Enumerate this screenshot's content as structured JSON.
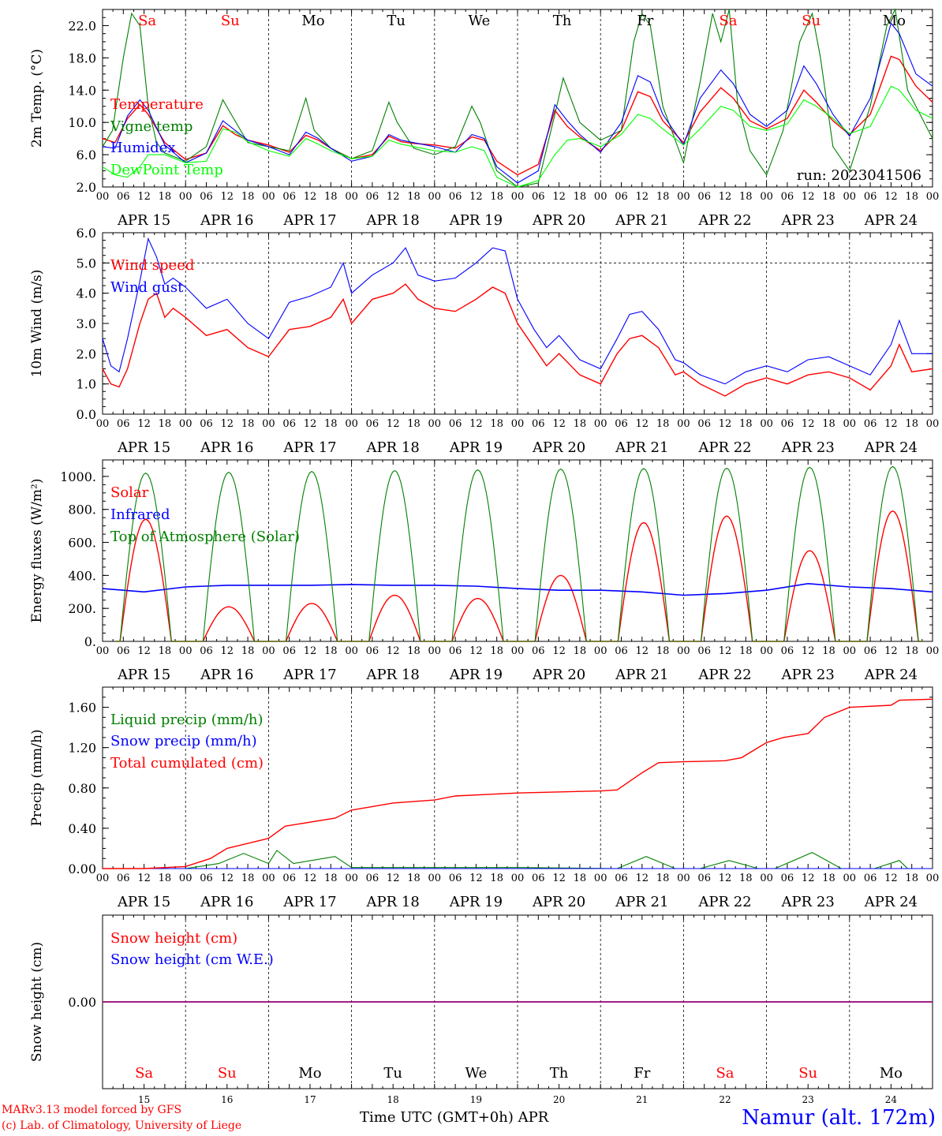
{
  "footer": {
    "model_line": "MARv3.13 model forced by GFS",
    "credit_line": "(c) Lab. of Climatology, University of Liege",
    "time_axis": "Time UTC (GMT+0h) APR",
    "station": "Namur (alt. 172m)"
  },
  "colors": {
    "red": "#ff0000",
    "green": "#008000",
    "blue": "#0000ff",
    "lime": "#00ff00",
    "purple": "#800080"
  },
  "x_axis": {
    "hour_ticks": [
      "00",
      "06",
      "12",
      "18"
    ],
    "day_labels": [
      "APR 15",
      "APR 16",
      "APR 17",
      "APR 18",
      "APR 19",
      "APR 20",
      "APR 21",
      "APR 22",
      "APR 23",
      "APR 24"
    ],
    "weekdays": [
      "Sa",
      "Su",
      "Mo",
      "Tu",
      "We",
      "Th",
      "Fr",
      "Sa",
      "Su",
      "Mo"
    ],
    "weekday_colors": [
      "red",
      "red",
      "black",
      "black",
      "black",
      "black",
      "black",
      "red",
      "red",
      "black"
    ],
    "day_numbers": [
      "15",
      "16",
      "17",
      "18",
      "19",
      "20",
      "21",
      "22",
      "23",
      "24"
    ]
  },
  "chart_data": [
    {
      "type": "line",
      "ylabel": "2m Temp. (°C)",
      "ylim": [
        2,
        24
      ],
      "yticks": [
        "2.0",
        "6.0",
        "10.0",
        "14.0",
        "18.0",
        "22.0"
      ],
      "annotation": "run: 2023041506",
      "series": [
        {
          "name": "Temperature",
          "color": "red",
          "x": [
            0,
            0.15,
            0.3,
            0.45,
            0.55,
            0.75,
            1,
            1.25,
            1.45,
            1.6,
            1.75,
            2,
            2.25,
            2.45,
            2.6,
            2.75,
            3,
            3.25,
            3.45,
            3.6,
            3.75,
            4,
            4.25,
            4.45,
            4.6,
            4.75,
            5,
            5.25,
            5.45,
            5.6,
            5.75,
            6,
            6.25,
            6.45,
            6.6,
            6.75,
            7,
            7.2,
            7.45,
            7.6,
            7.8,
            8,
            8.25,
            8.45,
            8.6,
            8.8,
            9,
            9.25,
            9.5,
            9.6,
            9.8,
            10
          ],
          "y": [
            8,
            7.5,
            10.5,
            12.2,
            11,
            7.5,
            5.4,
            6.2,
            9.6,
            8.5,
            7.8,
            7.2,
            6.3,
            8.4,
            7.8,
            6.8,
            5.5,
            6,
            8.3,
            7.6,
            7.4,
            7.2,
            6.8,
            8.2,
            7.8,
            5.2,
            3.5,
            4.8,
            11.5,
            9.5,
            8.2,
            6.5,
            9,
            13.8,
            13.2,
            10.2,
            7.5,
            11.3,
            14.3,
            13,
            10.2,
            9.2,
            10.5,
            14,
            12.5,
            10.2,
            8.5,
            11,
            18.2,
            17.8,
            14.5,
            12.5
          ]
        },
        {
          "name": "Vigne temp",
          "color": "green",
          "x": [
            0,
            0.12,
            0.25,
            0.35,
            0.45,
            0.55,
            0.65,
            0.75,
            1,
            1.25,
            1.45,
            1.55,
            1.75,
            2,
            2.25,
            2.45,
            2.55,
            2.75,
            3,
            3.25,
            3.45,
            3.55,
            3.75,
            4,
            4.25,
            4.45,
            4.55,
            4.75,
            5,
            5.25,
            5.45,
            5.55,
            5.75,
            6,
            6.25,
            6.4,
            6.5,
            6.6,
            6.75,
            7,
            7.2,
            7.35,
            7.45,
            7.55,
            7.65,
            7.8,
            8,
            8.2,
            8.4,
            8.55,
            8.65,
            8.8,
            9,
            9.25,
            9.45,
            9.55,
            9.7,
            10
          ],
          "y": [
            7,
            9,
            18,
            23.5,
            22,
            12,
            7.5,
            6.2,
            5.2,
            7,
            12.8,
            11,
            7.5,
            7,
            6.5,
            13,
            9,
            6.8,
            5.5,
            6.5,
            12.5,
            10,
            6.8,
            6,
            7,
            12,
            10,
            4,
            2,
            2.5,
            11,
            15.5,
            10,
            7.8,
            9,
            20,
            23.5,
            22,
            12,
            5,
            15,
            23.5,
            20,
            24,
            12.5,
            6.5,
            3.5,
            9,
            20,
            23.5,
            18,
            7,
            4,
            12,
            22,
            24,
            14,
            8
          ]
        },
        {
          "name": "Humidex",
          "color": "blue",
          "x": [
            0,
            0.15,
            0.3,
            0.45,
            0.55,
            0.75,
            1,
            1.25,
            1.45,
            1.6,
            1.75,
            2,
            2.25,
            2.45,
            2.6,
            2.75,
            3,
            3.25,
            3.45,
            3.6,
            3.75,
            4,
            4.25,
            4.45,
            4.6,
            4.75,
            5,
            5.25,
            5.45,
            5.6,
            5.75,
            6,
            6.25,
            6.45,
            6.6,
            6.75,
            7,
            7.2,
            7.45,
            7.6,
            7.8,
            8,
            8.25,
            8.45,
            8.6,
            8.8,
            9,
            9.25,
            9.5,
            9.6,
            9.8,
            10
          ],
          "y": [
            7,
            6.8,
            10.8,
            12.8,
            11.5,
            7.2,
            5,
            6.2,
            10.2,
            9,
            7.8,
            7,
            6,
            8.8,
            8,
            6.8,
            5.2,
            5.8,
            8.5,
            7.8,
            7.5,
            7,
            6.3,
            8.5,
            8,
            4.5,
            2.5,
            4,
            12.2,
            10.2,
            8.5,
            6.3,
            10,
            15.8,
            15,
            11,
            7.2,
            13,
            16.5,
            14.8,
            11,
            9.5,
            11.5,
            17,
            14.8,
            11,
            8.3,
            13,
            22.3,
            21,
            16,
            14.5
          ]
        },
        {
          "name": "DewPoint Temp",
          "color": "lime",
          "x": [
            0,
            0.15,
            0.3,
            0.45,
            0.55,
            0.75,
            1,
            1.25,
            1.45,
            1.6,
            1.75,
            2,
            2.25,
            2.45,
            2.6,
            2.75,
            3,
            3.25,
            3.45,
            3.6,
            3.75,
            4,
            4.25,
            4.45,
            4.6,
            4.75,
            5,
            5.25,
            5.45,
            5.6,
            5.75,
            6,
            6.25,
            6.45,
            6.6,
            6.75,
            7,
            7.2,
            7.45,
            7.6,
            7.8,
            8,
            8.25,
            8.45,
            8.6,
            8.8,
            9,
            9.25,
            9.5,
            9.6,
            9.8,
            10
          ],
          "y": [
            4.5,
            3.5,
            3.2,
            4.5,
            6,
            6,
            5,
            5.2,
            9.2,
            8.8,
            7.6,
            6.5,
            5.8,
            8,
            7.3,
            6.5,
            5.5,
            5.8,
            7.8,
            7.3,
            7,
            6.5,
            6.3,
            7,
            6.5,
            3.2,
            2,
            2.8,
            6,
            7.8,
            8,
            7,
            8.5,
            11,
            10.5,
            9.2,
            7.2,
            9.2,
            12,
            11.5,
            9.5,
            9,
            9.8,
            12.8,
            12,
            10.5,
            8.6,
            9.5,
            14.5,
            14,
            11.5,
            10.5
          ]
        }
      ]
    },
    {
      "type": "line",
      "ylabel": "10m Wind (m/s)",
      "ylim": [
        0,
        6
      ],
      "yticks": [
        "0.0",
        "1.0",
        "2.0",
        "3.0",
        "4.0",
        "5.0",
        "6.0"
      ],
      "series": [
        {
          "name": "Wind speed",
          "color": "red",
          "x": [
            0,
            0.1,
            0.2,
            0.3,
            0.45,
            0.55,
            0.65,
            0.75,
            0.85,
            1,
            1.25,
            1.5,
            1.75,
            2,
            2.25,
            2.5,
            2.75,
            2.9,
            3,
            3.25,
            3.5,
            3.65,
            3.8,
            4,
            4.25,
            4.5,
            4.7,
            4.85,
            5,
            5.2,
            5.35,
            5.5,
            5.75,
            6,
            6.2,
            6.35,
            6.5,
            6.7,
            6.9,
            7,
            7.2,
            7.5,
            7.75,
            8,
            8.25,
            8.5,
            8.75,
            9,
            9.25,
            9.5,
            9.6,
            9.75,
            10
          ],
          "y": [
            1.5,
            1,
            0.9,
            1.5,
            3,
            3.8,
            4,
            3.2,
            3.5,
            3.2,
            2.6,
            2.8,
            2.2,
            1.9,
            2.8,
            2.9,
            3.2,
            3.8,
            3,
            3.8,
            4,
            4.3,
            3.8,
            3.5,
            3.4,
            3.8,
            4.2,
            4,
            3,
            2.2,
            1.6,
            2,
            1.3,
            1,
            2,
            2.5,
            2.6,
            2.2,
            1.3,
            1.4,
            1,
            0.6,
            1,
            1.2,
            1,
            1.3,
            1.4,
            1.2,
            0.8,
            1.6,
            2.3,
            1.4,
            1.5
          ]
        },
        {
          "name": "Wind gust",
          "color": "blue",
          "x": [
            0,
            0.1,
            0.2,
            0.3,
            0.45,
            0.55,
            0.65,
            0.75,
            0.85,
            1,
            1.25,
            1.5,
            1.75,
            2,
            2.25,
            2.5,
            2.75,
            2.9,
            3,
            3.25,
            3.5,
            3.65,
            3.8,
            4,
            4.25,
            4.5,
            4.7,
            4.85,
            5,
            5.2,
            5.35,
            5.5,
            5.75,
            6,
            6.2,
            6.35,
            6.5,
            6.7,
            6.9,
            7,
            7.2,
            7.5,
            7.75,
            8,
            8.25,
            8.5,
            8.75,
            9,
            9.25,
            9.5,
            9.6,
            9.75,
            10
          ],
          "y": [
            2.5,
            1.6,
            1.4,
            2.5,
            4.4,
            5.8,
            5.2,
            4.3,
            4.5,
            4.2,
            3.5,
            3.8,
            3,
            2.5,
            3.7,
            3.9,
            4.2,
            5,
            4,
            4.6,
            5,
            5.5,
            4.6,
            4.4,
            4.5,
            5,
            5.5,
            5.4,
            3.8,
            2.8,
            2.2,
            2.6,
            1.8,
            1.5,
            2.5,
            3.3,
            3.4,
            2.8,
            1.8,
            1.7,
            1.3,
            1,
            1.4,
            1.6,
            1.4,
            1.8,
            1.9,
            1.6,
            1.3,
            2.3,
            3.1,
            2,
            2
          ]
        }
      ]
    },
    {
      "type": "line",
      "ylabel": "Energy fluxes (W/m²)",
      "ylim": [
        0,
        1100
      ],
      "yticks": [
        "0.",
        "200.",
        "400.",
        "600.",
        "800.",
        "1000."
      ],
      "series": [
        {
          "name": "Solar",
          "color": "red",
          "peaks": [
            740,
            210,
            230,
            280,
            260,
            400,
            720,
            760,
            550,
            790
          ]
        },
        {
          "name": "Infrared",
          "color": "blue",
          "x": [
            0,
            0.5,
            1,
            1.5,
            2,
            2.5,
            3,
            3.5,
            4,
            4.5,
            5,
            5.5,
            6,
            6.5,
            7,
            7.5,
            8,
            8.5,
            9,
            9.5,
            10
          ],
          "y": [
            320,
            300,
            330,
            340,
            340,
            340,
            345,
            340,
            340,
            335,
            320,
            310,
            310,
            300,
            280,
            290,
            310,
            350,
            330,
            320,
            300
          ]
        },
        {
          "name": "Top of Atmosphere (Solar)",
          "color": "green",
          "peaks": [
            1020,
            1025,
            1030,
            1035,
            1040,
            1045,
            1048,
            1050,
            1055,
            1060
          ]
        }
      ]
    },
    {
      "type": "line",
      "ylabel": "Precip (mm/h)",
      "ylim": [
        0,
        1.8
      ],
      "yticks": [
        "0.00",
        "0.40",
        "0.80",
        "1.20",
        "1.60"
      ],
      "series": [
        {
          "name": "Liquid precip (mm/h)",
          "color": "green",
          "x": [
            0,
            0.5,
            1,
            1.4,
            1.7,
            2,
            2.1,
            2.3,
            2.8,
            3,
            5,
            6.2,
            6.55,
            6.9,
            7.2,
            7.55,
            7.9,
            8.1,
            8.55,
            8.9,
            9.3,
            9.6,
            9.7,
            10
          ],
          "y": [
            0,
            0,
            0,
            0.05,
            0.15,
            0.05,
            0.18,
            0.05,
            0.12,
            0.01,
            0.01,
            0,
            0.12,
            0,
            0,
            0.08,
            0,
            0,
            0.16,
            0,
            0,
            0.08,
            0,
            0
          ]
        },
        {
          "name": "Snow precip (mm/h)",
          "color": "blue",
          "x": [
            0,
            10
          ],
          "y": [
            0,
            0
          ]
        },
        {
          "name": "Total cumulated (cm)",
          "color": "red",
          "x": [
            0,
            0.5,
            1,
            1.3,
            1.5,
            1.8,
            2,
            2.2,
            2.8,
            3,
            3.5,
            4,
            4.25,
            4.75,
            5,
            6,
            6.2,
            6.5,
            6.7,
            7,
            7.5,
            7.7,
            8,
            8.2,
            8.5,
            8.7,
            9,
            9.5,
            9.6,
            10
          ],
          "y": [
            0,
            0,
            0.02,
            0.1,
            0.2,
            0.26,
            0.3,
            0.42,
            0.5,
            0.58,
            0.65,
            0.68,
            0.72,
            0.74,
            0.75,
            0.77,
            0.78,
            0.95,
            1.05,
            1.06,
            1.07,
            1.1,
            1.25,
            1.3,
            1.34,
            1.5,
            1.6,
            1.62,
            1.67,
            1.68
          ]
        }
      ]
    },
    {
      "type": "line",
      "ylabel": "Snow height (cm)",
      "ylim": [
        -1,
        1
      ],
      "yticks": [
        "0.00"
      ],
      "series": [
        {
          "name": "Snow height (cm)",
          "color": "red",
          "x": [
            0,
            10
          ],
          "y": [
            0,
            0
          ]
        },
        {
          "name": "Snow height (cm W.E.)",
          "color": "blue",
          "x": [
            0,
            10
          ],
          "y": [
            0,
            0
          ]
        }
      ]
    }
  ]
}
